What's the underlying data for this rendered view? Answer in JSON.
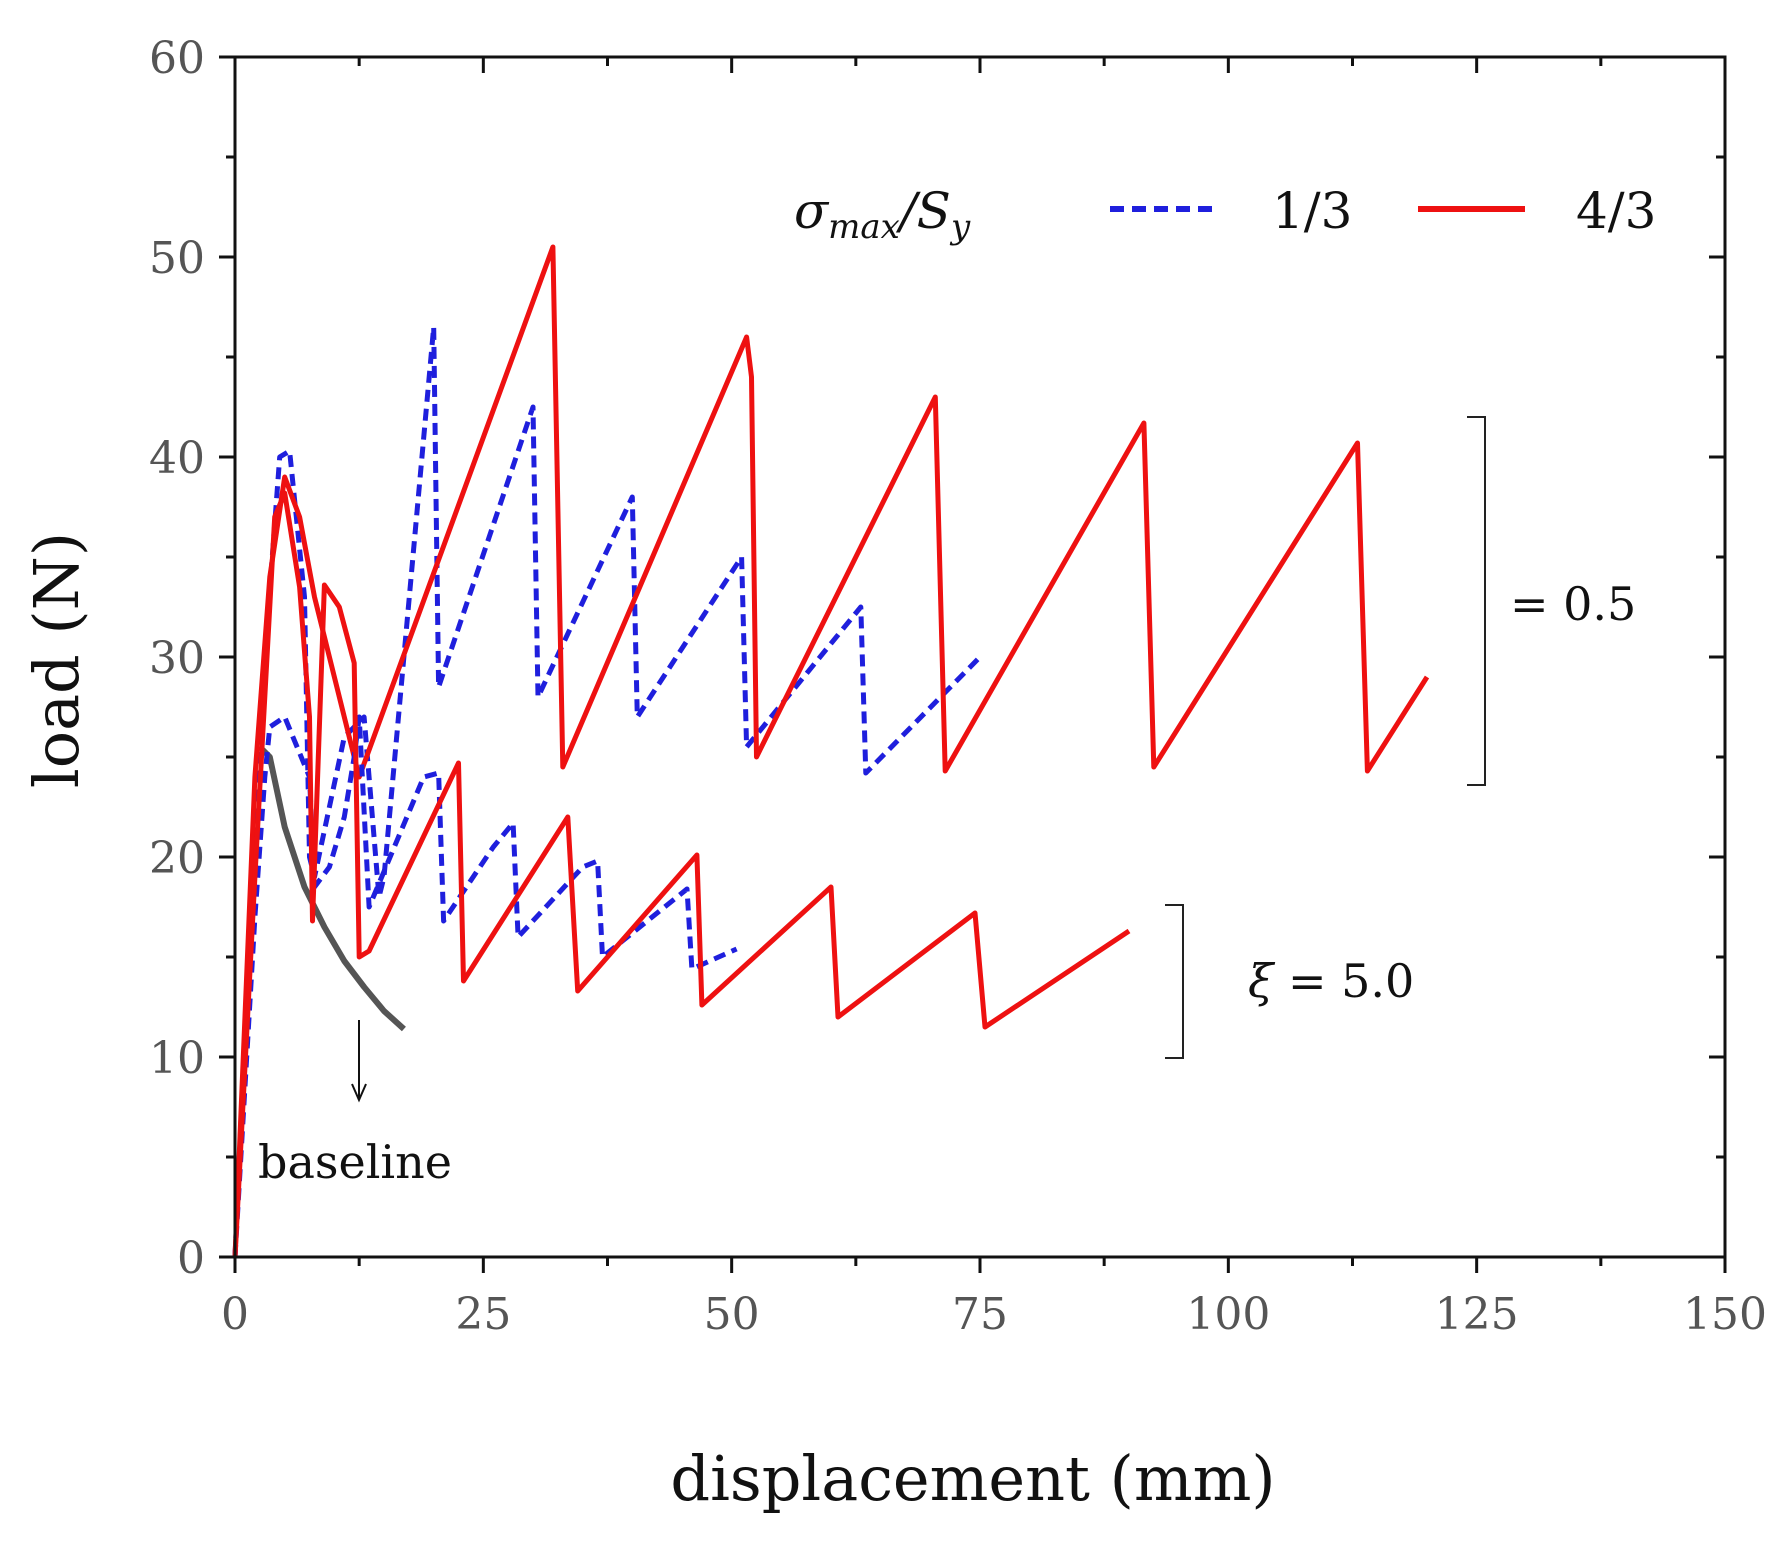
{
  "chart_data": {
    "type": "line",
    "title": "",
    "xlabel": "displacement (mm)",
    "ylabel": "load (N)",
    "xlim": [
      0,
      150
    ],
    "ylim": [
      0,
      60
    ],
    "x_ticks": [
      0,
      25,
      50,
      75,
      100,
      125,
      150
    ],
    "x_tick_labels": [
      "0",
      "25",
      "50",
      "75",
      "100",
      "125",
      "150"
    ],
    "y_ticks": [
      0,
      10,
      20,
      30,
      40,
      50,
      60
    ],
    "y_tick_labels": [
      "0",
      "10",
      "20",
      "30",
      "40",
      "50",
      "60"
    ],
    "grid": false,
    "legend": {
      "title_prefix": "σ",
      "title_sub": "max",
      "title_mid": "/S",
      "title_sub2": "y",
      "entries": [
        {
          "label": "1/3",
          "style": "dashed",
          "color": "#1f1fdd"
        },
        {
          "label": "4/3",
          "style": "solid",
          "color": "#ee1111"
        }
      ]
    },
    "series": [
      {
        "name": "baseline",
        "color": "#555555",
        "style": "solid",
        "points": [
          [
            2.5,
            25.5
          ],
          [
            3.5,
            25
          ],
          [
            5,
            21.5
          ],
          [
            7,
            18.5
          ],
          [
            9,
            16.5
          ],
          [
            11,
            14.8
          ],
          [
            13,
            13.5
          ],
          [
            15,
            12.3
          ],
          [
            17,
            11.4
          ]
        ]
      },
      {
        "name": "1/3, xi=0.5",
        "color": "#1f1fdd",
        "style": "dashed",
        "points": [
          [
            0,
            0
          ],
          [
            1.5,
            17
          ],
          [
            3,
            30
          ],
          [
            4.5,
            40
          ],
          [
            5.5,
            40.3
          ],
          [
            7,
            33
          ],
          [
            7.5,
            20
          ],
          [
            8,
            19
          ],
          [
            11,
            26
          ],
          [
            13,
            27
          ],
          [
            14.5,
            18
          ],
          [
            15,
            19
          ],
          [
            20,
            46.5
          ],
          [
            20.5,
            28.5
          ],
          [
            30,
            42.5
          ],
          [
            30.5,
            28
          ],
          [
            40,
            38
          ],
          [
            40.5,
            27
          ],
          [
            51,
            35
          ],
          [
            51.5,
            25.5
          ],
          [
            63,
            32.5
          ],
          [
            63.5,
            24.2
          ],
          [
            75,
            30
          ]
        ]
      },
      {
        "name": "4/3, xi=0.5",
        "color": "#ee1111",
        "style": "solid",
        "points": [
          [
            0,
            0
          ],
          [
            2,
            24
          ],
          [
            3.5,
            34
          ],
          [
            5,
            39
          ],
          [
            6.5,
            37
          ],
          [
            8,
            33
          ],
          [
            12.5,
            24
          ],
          [
            32,
            50.5
          ],
          [
            33,
            24.5
          ],
          [
            51.5,
            46
          ],
          [
            52,
            44
          ],
          [
            52.5,
            25
          ],
          [
            70.5,
            43
          ],
          [
            71.5,
            24.3
          ],
          [
            91.5,
            41.7
          ],
          [
            92.5,
            24.5
          ],
          [
            113,
            40.7
          ],
          [
            114,
            24.3
          ],
          [
            120,
            29
          ]
        ]
      },
      {
        "name": "1/3, xi=5.0",
        "color": "#1f1fdd",
        "style": "dashed",
        "points": [
          [
            0,
            0
          ],
          [
            2,
            17
          ],
          [
            3,
            24
          ],
          [
            3.5,
            26.5
          ],
          [
            5,
            27
          ],
          [
            7.5,
            24
          ],
          [
            8,
            18.5
          ],
          [
            9.5,
            19.5
          ],
          [
            11,
            22
          ],
          [
            12,
            25
          ],
          [
            12.5,
            27
          ],
          [
            13.5,
            17.5
          ],
          [
            19,
            24
          ],
          [
            20.5,
            24.2
          ],
          [
            21,
            16.8
          ],
          [
            26,
            20.5
          ],
          [
            28,
            21.7
          ],
          [
            28.5,
            16
          ],
          [
            35,
            19.5
          ],
          [
            36.5,
            19.8
          ],
          [
            37,
            15
          ],
          [
            45.5,
            18.4
          ],
          [
            46,
            14.4
          ],
          [
            50.5,
            15.4
          ]
        ]
      },
      {
        "name": "4/3, xi=5.0",
        "color": "#ee1111",
        "style": "solid",
        "points": [
          [
            0,
            0
          ],
          [
            2,
            19
          ],
          [
            4,
            37
          ],
          [
            5,
            38.2
          ],
          [
            6.5,
            33.5
          ],
          [
            7.5,
            27
          ],
          [
            7.8,
            16.8
          ],
          [
            9,
            33.6
          ],
          [
            10.5,
            32.5
          ],
          [
            12,
            29.7
          ],
          [
            12.5,
            15
          ],
          [
            13.5,
            15.3
          ],
          [
            22.5,
            24.7
          ],
          [
            23,
            13.8
          ],
          [
            33.5,
            22
          ],
          [
            34.5,
            13.3
          ],
          [
            46.5,
            20.1
          ],
          [
            47,
            12.6
          ],
          [
            60,
            18.5
          ],
          [
            60.7,
            12
          ],
          [
            74.5,
            17.2
          ],
          [
            75.5,
            11.5
          ],
          [
            90,
            16.3
          ]
        ]
      }
    ],
    "annotations": {
      "baseline_label": "baseline",
      "group_top_label": "= 0.5",
      "group_bottom_prefix": "ξ",
      "group_bottom_label": " = 5.0"
    }
  }
}
